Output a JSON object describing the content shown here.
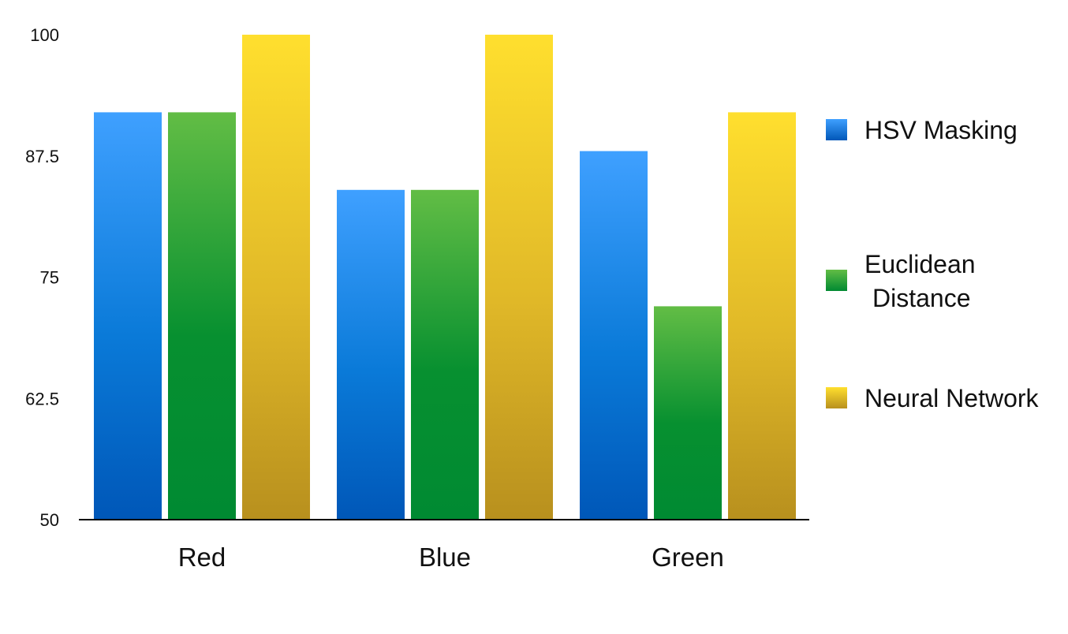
{
  "chart_data": {
    "type": "bar",
    "title": "",
    "xlabel": "",
    "ylabel": "",
    "categories": [
      "Red",
      "Blue",
      "Green"
    ],
    "ylim": [
      50,
      100
    ],
    "yticks": [
      "100",
      "87.5",
      "75",
      "62.5",
      "50"
    ],
    "grid": false,
    "legend_position": "right",
    "series": [
      {
        "name": "HSV Masking",
        "values": [
          92,
          84,
          88
        ],
        "color_top": "#3fa0ff",
        "color_mid": "#0a7ad8",
        "color_bottom": "#0057b8"
      },
      {
        "name": "Euclidean Distance",
        "name_lines": [
          "Euclidean",
          "Distance"
        ],
        "values": [
          92,
          84,
          72
        ],
        "color_top": "#62bd45",
        "color_mid": "#079030",
        "color_bottom": "#008a32"
      },
      {
        "name": "Neural Network",
        "values": [
          100,
          100,
          92
        ],
        "color_top": "#ffdf2e",
        "color_mid": "#e0b828",
        "color_bottom": "#b8901e"
      }
    ]
  }
}
